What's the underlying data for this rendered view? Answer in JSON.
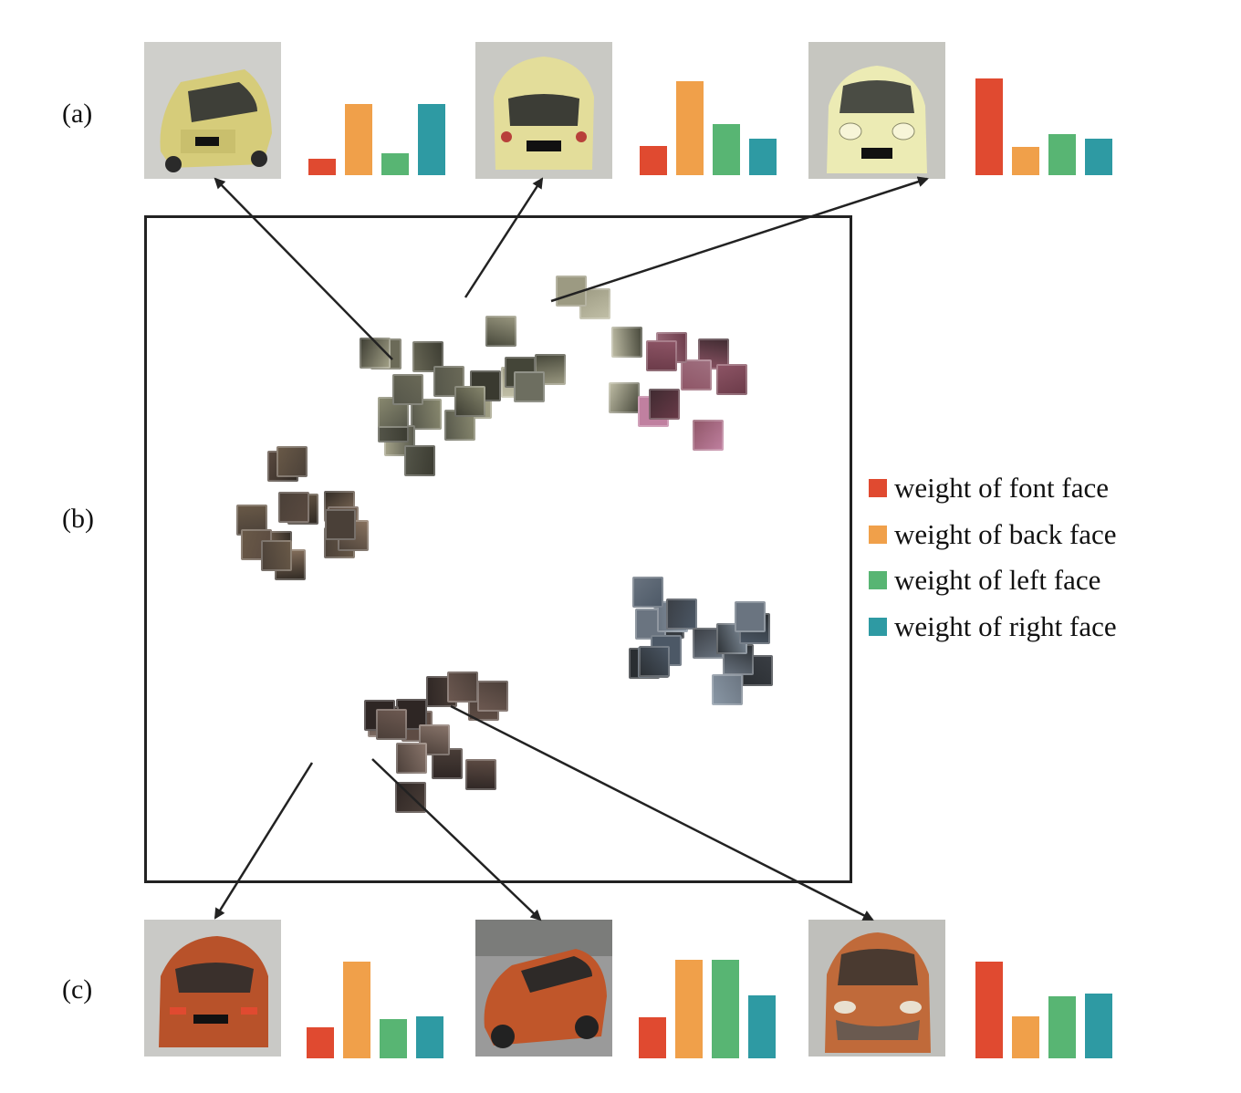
{
  "row_labels": {
    "a": "(a)",
    "b": "(b)",
    "c": "(c)"
  },
  "legend": [
    {
      "label": "weight of font face",
      "color": "#e04a30"
    },
    {
      "label": "weight of back face",
      "color": "#f0a04a"
    },
    {
      "label": "weight of left face",
      "color": "#58b573"
    },
    {
      "label": "weight of right face",
      "color": "#2e9aa3"
    }
  ],
  "chart_data": [
    {
      "type": "bar",
      "name_row": "a",
      "vehicle": "yellow-hatchback-rear-left",
      "values": [
        0.17,
        0.74,
        0.23,
        0.74
      ]
    },
    {
      "type": "bar",
      "name_row": "a",
      "vehicle": "yellow-hatchback-rear",
      "values": [
        0.3,
        0.97,
        0.53,
        0.38
      ]
    },
    {
      "type": "bar",
      "name_row": "a",
      "vehicle": "yellow-hatchback-front",
      "values": [
        1.0,
        0.29,
        0.42,
        0.38
      ]
    },
    {
      "type": "bar",
      "name_row": "c",
      "vehicle": "orange-suv-rear",
      "values": [
        0.32,
        1.0,
        0.41,
        0.43
      ]
    },
    {
      "type": "bar",
      "name_row": "c",
      "vehicle": "orange-suv-side",
      "values": [
        0.42,
        1.02,
        1.02,
        0.65
      ]
    },
    {
      "type": "bar",
      "name_row": "c",
      "vehicle": "orange-suv-front",
      "values": [
        1.0,
        0.43,
        0.64,
        0.67
      ]
    }
  ],
  "icons": {
    "car_yellow": "yellow-car-photo",
    "car_orange": "orange-car-photo",
    "arrow": "arrow-icon"
  }
}
